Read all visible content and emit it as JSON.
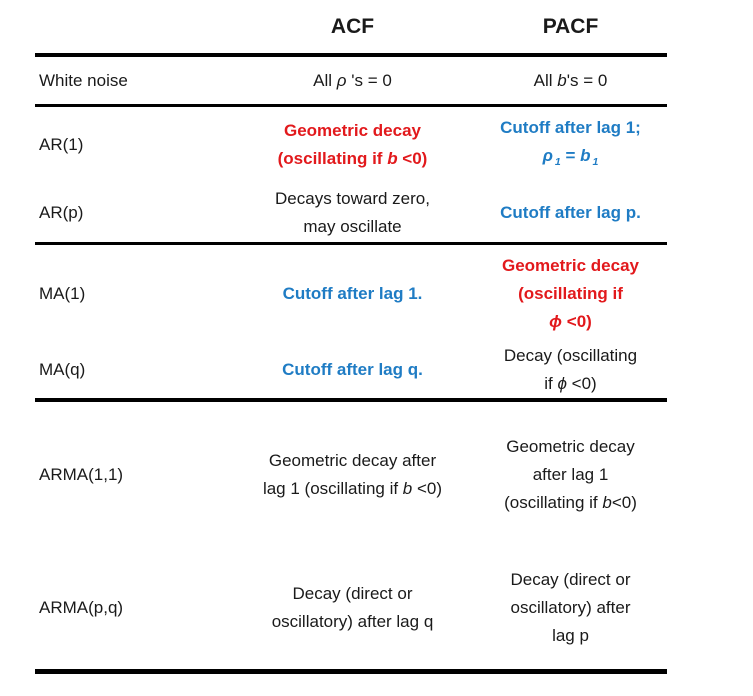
{
  "colors": {
    "red": "#e2191c",
    "blue": "#1f7cc4",
    "text": "#1a1a1a",
    "rule": "#000000"
  },
  "table": {
    "header": {
      "model": "",
      "acf": "ACF",
      "pacf": "PACF"
    },
    "rows": [
      {
        "label": "White noise",
        "acf": {
          "style": "plain",
          "lines": [
            [
              {
                "t": "All "
              },
              {
                "t": "ρ ",
                "i": true
              },
              {
                "t": "'s = 0"
              }
            ]
          ]
        },
        "pacf": {
          "style": "plain",
          "lines": [
            [
              {
                "t": "All "
              },
              {
                "t": "b",
                "i": true
              },
              {
                "t": "'s = 0"
              }
            ]
          ]
        }
      },
      {
        "label": "AR(1)",
        "acf": {
          "style": "red",
          "lines": [
            [
              {
                "t": "Geometric decay"
              }
            ],
            [
              {
                "t": "(oscillating if "
              },
              {
                "t": "b",
                "i": true
              },
              {
                "t": " <0)"
              }
            ]
          ]
        },
        "pacf": {
          "style": "blue",
          "lines": [
            [
              {
                "t": "Cutoff after lag 1;"
              }
            ],
            [
              {
                "t": "ρ",
                "i": true
              },
              {
                "t": "1",
                "sub": true,
                "i": true
              },
              {
                "t": " = "
              },
              {
                "t": "b",
                "i": true
              },
              {
                "t": "1",
                "sub": true,
                "i": true
              }
            ]
          ]
        }
      },
      {
        "label": "AR(p)",
        "acf": {
          "style": "plain",
          "lines": [
            [
              {
                "t": "Decays toward zero,"
              }
            ],
            [
              {
                "t": "may oscillate"
              }
            ]
          ]
        },
        "pacf": {
          "style": "blue",
          "lines": [
            [
              {
                "t": "Cutoff after lag p."
              }
            ]
          ]
        }
      },
      {
        "label": "MA(1)",
        "acf": {
          "style": "blue",
          "lines": [
            [
              {
                "t": "Cutoff after lag 1."
              }
            ]
          ]
        },
        "pacf": {
          "style": "red",
          "lines": [
            [
              {
                "t": "Geometric decay"
              }
            ],
            [
              {
                "t": "(oscillating if"
              }
            ],
            [
              {
                "t": "ϕ",
                "i": true
              },
              {
                "t": " <0)"
              }
            ]
          ]
        }
      },
      {
        "label": "MA(q)",
        "acf": {
          "style": "blue",
          "lines": [
            [
              {
                "t": "Cutoff after lag q."
              }
            ]
          ]
        },
        "pacf": {
          "style": "plain",
          "lines": [
            [
              {
                "t": "Decay (oscillating"
              }
            ],
            [
              {
                "t": "if "
              },
              {
                "t": "ϕ",
                "i": true
              },
              {
                "t": " <0)"
              }
            ]
          ]
        }
      },
      {
        "label": "ARMA(1,1)",
        "acf": {
          "style": "plain",
          "lines": [
            [
              {
                "t": "Geometric decay after"
              }
            ],
            [
              {
                "t": "lag 1 (oscillating if "
              },
              {
                "t": "b",
                "i": true
              },
              {
                "t": " <0)"
              }
            ]
          ]
        },
        "pacf": {
          "style": "plain",
          "lines": [
            [
              {
                "t": "Geometric decay"
              }
            ],
            [
              {
                "t": "after lag 1"
              }
            ],
            [
              {
                "t": "(oscillating if "
              },
              {
                "t": "b",
                "i": true
              },
              {
                "t": "<0)"
              }
            ]
          ]
        }
      },
      {
        "label": "ARMA(p,q)",
        "acf": {
          "style": "plain",
          "lines": [
            [
              {
                "t": "Decay (direct or"
              }
            ],
            [
              {
                "t": "oscillatory) after lag q"
              }
            ]
          ]
        },
        "pacf": {
          "style": "plain",
          "lines": [
            [
              {
                "t": "Decay (direct or"
              }
            ],
            [
              {
                "t": "oscillatory) after"
              }
            ],
            [
              {
                "t": "lag p"
              }
            ]
          ]
        }
      }
    ]
  }
}
